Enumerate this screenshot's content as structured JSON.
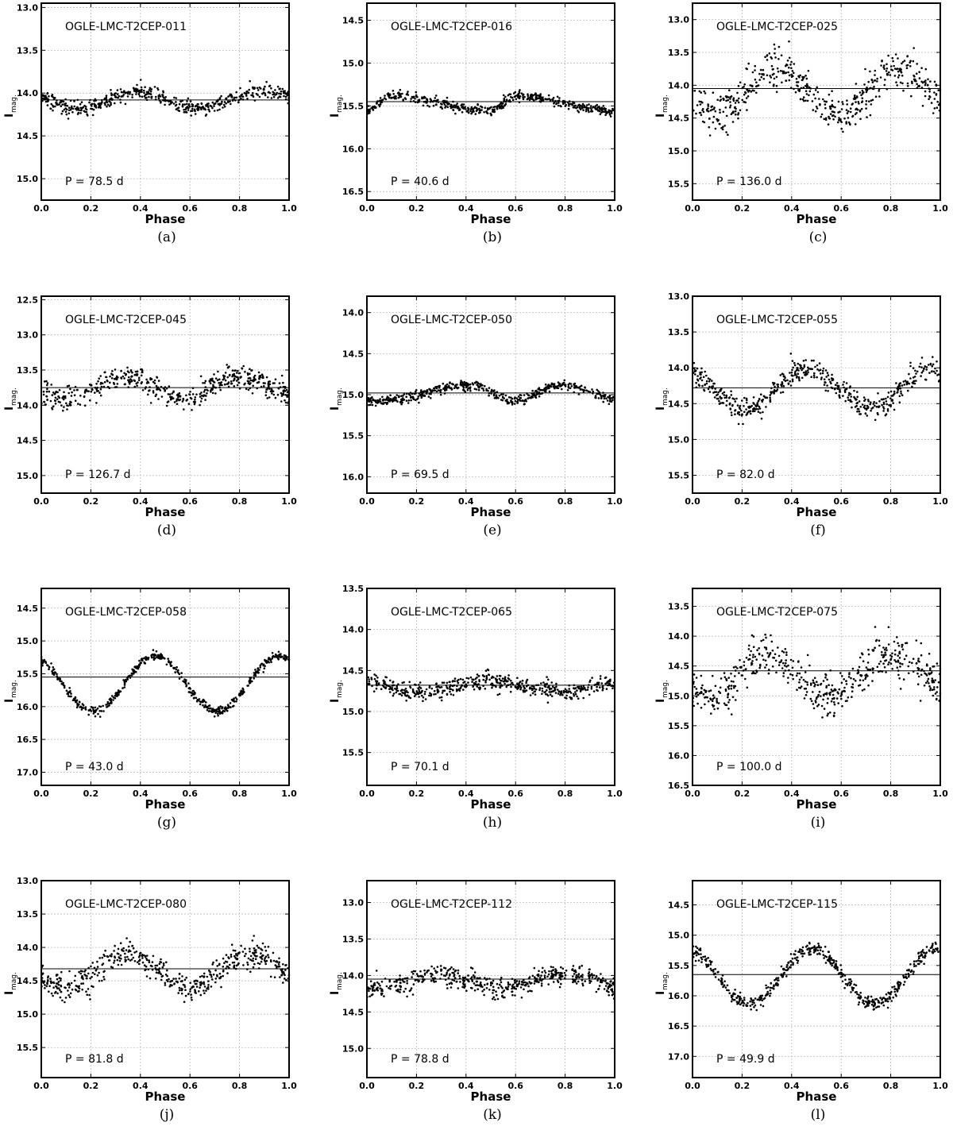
{
  "chart_data": [
    {
      "type": "scatter",
      "panel_label": "(a)",
      "star": "OGLE-LMC-T2CEP-011",
      "period_text": "P = 78.5 d",
      "xlabel": "Phase",
      "ylabel": "I",
      "ylabel_sub": "mag.",
      "xlim": [
        0.0,
        1.0
      ],
      "ylim": [
        15.25,
        12.95
      ],
      "y_inverted": true,
      "x_ticks": [
        "0.0",
        "0.2",
        "0.4",
        "0.6",
        "0.8",
        "1.0"
      ],
      "y_ticks": [
        "13.0",
        "13.5",
        "14.0",
        "14.5",
        "15.0"
      ],
      "grid": true,
      "mean_mag": 14.08,
      "light_curve": {
        "amp": 0.1,
        "mean": 14.08,
        "minima_phase": [
          0.15,
          0.62
        ],
        "maxima_phase": [
          0.4,
          0.9
        ],
        "scatter": 0.04
      },
      "x": [
        0.05,
        0.15,
        0.25,
        0.35,
        0.45,
        0.55,
        0.65,
        0.75,
        0.85,
        0.95
      ],
      "y": [
        14.12,
        14.2,
        14.1,
        14.0,
        13.98,
        14.08,
        14.18,
        14.14,
        14.02,
        14.0
      ]
    },
    {
      "type": "scatter",
      "panel_label": "(b)",
      "star": "OGLE-LMC-T2CEP-016",
      "period_text": "P = 40.6 d",
      "xlabel": "Phase",
      "ylabel": "I",
      "ylabel_sub": "mag.",
      "xlim": [
        0.0,
        1.0
      ],
      "ylim": [
        16.6,
        14.3
      ],
      "y_inverted": true,
      "x_ticks": [
        "0.0",
        "0.2",
        "0.4",
        "0.6",
        "0.8",
        "1.0"
      ],
      "y_ticks": [
        "14.5",
        "15.0",
        "15.5",
        "16.0",
        "16.5"
      ],
      "grid": true,
      "mean_mag": 15.45,
      "light_curve": {
        "amp": 0.09,
        "mean": 15.47,
        "minima_phase": [
          0.0,
          0.5
        ],
        "maxima_phase": [
          0.1,
          0.6
        ],
        "scatter": 0.03
      },
      "x": [
        0.05,
        0.15,
        0.25,
        0.35,
        0.45,
        0.55,
        0.65,
        0.75,
        0.85,
        0.95
      ],
      "y": [
        15.5,
        15.42,
        15.45,
        15.46,
        15.44,
        15.55,
        15.42,
        15.45,
        15.47,
        15.55
      ]
    },
    {
      "type": "scatter",
      "panel_label": "(c)",
      "star": "OGLE-LMC-T2CEP-025",
      "period_text": "P = 136.0 d",
      "xlabel": "Phase",
      "ylabel": "I",
      "ylabel_sub": "mag.",
      "xlim": [
        0.0,
        1.0
      ],
      "ylim": [
        15.75,
        12.75
      ],
      "y_inverted": true,
      "x_ticks": [
        "0.0",
        "0.2",
        "0.4",
        "0.6",
        "0.8",
        "1.0"
      ],
      "y_ticks": [
        "13.0",
        "13.5",
        "14.0",
        "14.5",
        "15.0",
        "15.5"
      ],
      "grid": true,
      "mean_mag": 14.05,
      "light_curve": {
        "amp": 0.35,
        "mean": 14.1,
        "minima_phase": [
          0.1,
          0.6
        ],
        "maxima_phase": [
          0.33,
          0.82
        ],
        "scatter": 0.15
      },
      "x": [
        0.05,
        0.15,
        0.25,
        0.35,
        0.45,
        0.55,
        0.65,
        0.75,
        0.85,
        0.95
      ],
      "y": [
        14.1,
        14.3,
        13.95,
        13.85,
        14.1,
        14.5,
        14.4,
        13.85,
        13.85,
        14.05
      ]
    },
    {
      "type": "scatter",
      "panel_label": "(d)",
      "star": "OGLE-LMC-T2CEP-045",
      "period_text": "P = 126.7 d",
      "xlabel": "Phase",
      "ylabel": "I",
      "ylabel_sub": "mag.",
      "xlim": [
        0.0,
        1.0
      ],
      "ylim": [
        15.25,
        12.45
      ],
      "y_inverted": true,
      "x_ticks": [
        "0.0",
        "0.2",
        "0.4",
        "0.6",
        "0.8",
        "1.0"
      ],
      "y_ticks": [
        "12.5",
        "13.0",
        "13.5",
        "14.0",
        "14.5",
        "15.0"
      ],
      "grid": true,
      "mean_mag": 13.75,
      "light_curve": {
        "amp": 0.15,
        "mean": 13.75,
        "minima_phase": [
          0.1,
          0.58
        ],
        "maxima_phase": [
          0.35,
          0.78
        ],
        "scatter": 0.08
      },
      "x": [
        0.05,
        0.15,
        0.25,
        0.35,
        0.45,
        0.55,
        0.65,
        0.75,
        0.85,
        0.95
      ],
      "y": [
        13.8,
        13.95,
        13.7,
        13.6,
        13.7,
        13.95,
        13.8,
        13.55,
        13.65,
        13.7
      ]
    },
    {
      "type": "scatter",
      "panel_label": "(e)",
      "star": "OGLE-LMC-T2CEP-050",
      "period_text": "P = 69.5 d",
      "xlabel": "Phase",
      "ylabel": "I",
      "ylabel_sub": "mag.",
      "xlim": [
        0.0,
        1.0
      ],
      "ylim": [
        16.2,
        13.8
      ],
      "y_inverted": true,
      "x_ticks": [
        "0.0",
        "0.2",
        "0.4",
        "0.6",
        "0.8",
        "1.0"
      ],
      "y_ticks": [
        "14.0",
        "14.5",
        "15.0",
        "15.5",
        "16.0"
      ],
      "grid": true,
      "mean_mag": 14.98,
      "light_curve": {
        "amp": 0.1,
        "mean": 14.98,
        "minima_phase": [
          0.05,
          0.6
        ],
        "maxima_phase": [
          0.42,
          0.78
        ],
        "scatter": 0.03
      },
      "x": [
        0.05,
        0.15,
        0.25,
        0.35,
        0.45,
        0.55,
        0.65,
        0.75,
        0.85,
        0.95
      ],
      "y": [
        15.02,
        15.0,
        14.95,
        14.92,
        14.93,
        15.1,
        15.0,
        14.88,
        14.92,
        14.98
      ]
    },
    {
      "type": "scatter",
      "panel_label": "(f)",
      "star": "OGLE-LMC-T2CEP-055",
      "period_text": "P = 82.0 d",
      "xlabel": "Phase",
      "ylabel": "I",
      "ylabel_sub": "mag.",
      "xlim": [
        0.0,
        1.0
      ],
      "ylim": [
        15.75,
        13.0
      ],
      "y_inverted": true,
      "x_ticks": [
        "0.0",
        "0.2",
        "0.4",
        "0.6",
        "0.8",
        "1.0"
      ],
      "y_ticks": [
        "13.0",
        "13.5",
        "14.0",
        "14.5",
        "15.0",
        "15.5"
      ],
      "grid": true,
      "mean_mag": 14.28,
      "light_curve": {
        "amp": 0.28,
        "mean": 14.3,
        "minima_phase": [
          0.22,
          0.73
        ],
        "maxima_phase": [
          0.45,
          0.95
        ],
        "scatter": 0.08
      },
      "x": [
        0.05,
        0.15,
        0.25,
        0.35,
        0.45,
        0.55,
        0.65,
        0.75,
        0.85,
        0.95
      ],
      "y": [
        14.15,
        14.4,
        14.5,
        14.15,
        14.05,
        14.25,
        14.5,
        14.5,
        14.15,
        14.05
      ]
    },
    {
      "type": "scatter",
      "panel_label": "(g)",
      "star": "OGLE-LMC-T2CEP-058",
      "period_text": "P = 43.0 d",
      "xlabel": "Phase",
      "ylabel": "I",
      "ylabel_sub": "mag.",
      "xlim": [
        0.0,
        1.0
      ],
      "ylim": [
        17.2,
        14.2
      ],
      "y_inverted": true,
      "x_ticks": [
        "0.0",
        "0.2",
        "0.4",
        "0.6",
        "0.8",
        "1.0"
      ],
      "y_ticks": [
        "14.5",
        "15.0",
        "15.5",
        "16.0",
        "16.5",
        "17.0"
      ],
      "grid": true,
      "mean_mag": 15.55,
      "light_curve": {
        "amp": 0.42,
        "mean": 15.65,
        "minima_phase": [
          0.21,
          0.71
        ],
        "maxima_phase": [
          0.46,
          0.96
        ],
        "scatter": 0.03
      },
      "x": [
        0.05,
        0.15,
        0.25,
        0.35,
        0.45,
        0.55,
        0.65,
        0.75,
        0.85,
        0.95
      ],
      "y": [
        15.45,
        15.85,
        15.9,
        15.35,
        15.2,
        15.6,
        16.1,
        15.9,
        15.3,
        15.2
      ]
    },
    {
      "type": "scatter",
      "panel_label": "(h)",
      "star": "OGLE-LMC-T2CEP-065",
      "period_text": "P = 70.1 d",
      "xlabel": "Phase",
      "ylabel": "I",
      "ylabel_sub": "mag.",
      "xlim": [
        0.0,
        1.0
      ],
      "ylim": [
        15.9,
        13.5
      ],
      "y_inverted": true,
      "x_ticks": [
        "0.0",
        "0.2",
        "0.4",
        "0.6",
        "0.8",
        "1.0"
      ],
      "y_ticks": [
        "13.5",
        "14.0",
        "14.5",
        "15.0",
        "15.5"
      ],
      "grid": true,
      "mean_mag": 14.68,
      "light_curve": {
        "amp": 0.06,
        "mean": 14.7,
        "minima_phase": [
          0.2,
          0.8
        ],
        "maxima_phase": [
          0.0,
          0.48
        ],
        "scatter": 0.05
      },
      "x": [
        0.05,
        0.15,
        0.25,
        0.35,
        0.45,
        0.55,
        0.65,
        0.75,
        0.85,
        0.95
      ],
      "y": [
        14.65,
        14.72,
        14.75,
        14.7,
        14.65,
        14.7,
        14.75,
        14.78,
        14.72,
        14.65
      ]
    },
    {
      "type": "scatter",
      "panel_label": "(i)",
      "star": "OGLE-LMC-T2CEP-075",
      "period_text": "P = 100.0 d",
      "xlabel": "Phase",
      "ylabel": "I",
      "ylabel_sub": "mag.",
      "xlim": [
        0.0,
        1.0
      ],
      "ylim": [
        16.5,
        13.2
      ],
      "y_inverted": true,
      "x_ticks": [
        "0.0",
        "0.2",
        "0.4",
        "0.6",
        "0.8",
        "1.0"
      ],
      "y_ticks": [
        "13.5",
        "14.0",
        "14.5",
        "15.0",
        "15.5",
        "16.0",
        "16.5"
      ],
      "grid": true,
      "mean_mag": 14.58,
      "light_curve": {
        "amp": 0.35,
        "mean": 14.65,
        "minima_phase": [
          0.08,
          0.55
        ],
        "maxima_phase": [
          0.3,
          0.8
        ],
        "scatter": 0.18
      },
      "x": [
        0.05,
        0.15,
        0.25,
        0.35,
        0.45,
        0.55,
        0.65,
        0.75,
        0.85,
        0.95
      ],
      "y": [
        14.9,
        14.6,
        14.35,
        14.4,
        14.7,
        15.0,
        14.6,
        14.25,
        14.35,
        14.6
      ]
    },
    {
      "type": "scatter",
      "panel_label": "(j)",
      "star": "OGLE-LMC-T2CEP-080",
      "period_text": "P = 81.8 d",
      "xlabel": "Phase",
      "ylabel": "I",
      "ylabel_sub": "mag.",
      "xlim": [
        0.0,
        1.0
      ],
      "ylim": [
        15.95,
        13.0
      ],
      "y_inverted": true,
      "x_ticks": [
        "0.0",
        "0.2",
        "0.4",
        "0.6",
        "0.8",
        "1.0"
      ],
      "y_ticks": [
        "13.0",
        "13.5",
        "14.0",
        "14.5",
        "15.0",
        "15.5"
      ],
      "grid": true,
      "mean_mag": 14.32,
      "light_curve": {
        "amp": 0.25,
        "mean": 14.35,
        "minima_phase": [
          0.1,
          0.6
        ],
        "maxima_phase": [
          0.35,
          0.85
        ],
        "scatter": 0.1
      },
      "x": [
        0.05,
        0.15,
        0.25,
        0.35,
        0.45,
        0.55,
        0.65,
        0.75,
        0.85,
        0.95
      ],
      "y": [
        14.5,
        14.55,
        14.25,
        14.12,
        14.25,
        14.6,
        14.55,
        14.2,
        14.12,
        14.3
      ]
    },
    {
      "type": "scatter",
      "panel_label": "(k)",
      "star": "OGLE-LMC-T2CEP-112",
      "period_text": "P = 78.8 d",
      "xlabel": "Phase",
      "ylabel": "I",
      "ylabel_sub": "mag.",
      "xlim": [
        0.0,
        1.0
      ],
      "ylim": [
        15.4,
        12.7
      ],
      "y_inverted": true,
      "x_ticks": [
        "0.0",
        "0.2",
        "0.4",
        "0.6",
        "0.8",
        "1.0"
      ],
      "y_ticks": [
        "13.0",
        "13.5",
        "14.0",
        "14.5",
        "15.0"
      ],
      "grid": true,
      "mean_mag": 14.05,
      "light_curve": {
        "amp": 0.1,
        "mean": 14.08,
        "minima_phase": [
          0.05,
          0.55
        ],
        "maxima_phase": [
          0.3,
          0.8
        ],
        "scatter": 0.07
      },
      "x": [
        0.05,
        0.15,
        0.25,
        0.35,
        0.45,
        0.55,
        0.65,
        0.75,
        0.85,
        0.95
      ],
      "y": [
        14.18,
        14.1,
        14.0,
        14.0,
        14.1,
        14.2,
        14.12,
        14.0,
        14.0,
        14.1
      ]
    },
    {
      "type": "scatter",
      "panel_label": "(l)",
      "star": "OGLE-LMC-T2CEP-115",
      "period_text": "P = 49.9 d",
      "xlabel": "Phase",
      "ylabel": "I",
      "ylabel_sub": "mag.",
      "xlim": [
        0.0,
        1.0
      ],
      "ylim": [
        17.35,
        14.1
      ],
      "y_inverted": true,
      "x_ticks": [
        "0.0",
        "0.2",
        "0.4",
        "0.6",
        "0.8",
        "1.0"
      ],
      "y_ticks": [
        "14.5",
        "15.0",
        "15.5",
        "16.0",
        "16.5",
        "17.0"
      ],
      "grid": true,
      "mean_mag": 15.65,
      "light_curve": {
        "amp": 0.45,
        "mean": 15.68,
        "minima_phase": [
          0.23,
          0.74
        ],
        "maxima_phase": [
          0.48,
          0.98
        ],
        "scatter": 0.06
      },
      "x": [
        0.05,
        0.15,
        0.25,
        0.35,
        0.45,
        0.55,
        0.65,
        0.75,
        0.85,
        0.95
      ],
      "y": [
        15.4,
        15.7,
        16.05,
        15.6,
        15.2,
        15.4,
        15.9,
        15.95,
        15.55,
        15.3
      ]
    }
  ],
  "style": {
    "marker_color": "#000000",
    "mean_line_color": "#000000",
    "grid_color": "#b0b0b0",
    "frame_color": "#000000"
  }
}
